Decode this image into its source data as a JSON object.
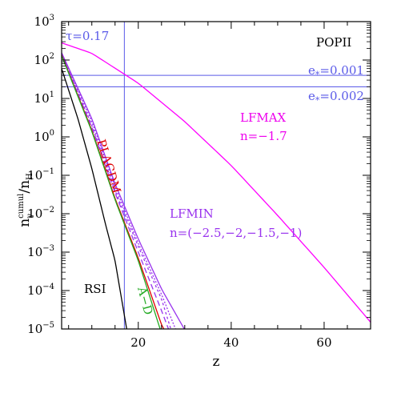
{
  "chart_data": {
    "type": "line",
    "xlabel": "z",
    "ylabel_main": "n",
    "ylabel_sub": "γ",
    "ylabel_sup": "cumul",
    "ylabel_tail": "/n",
    "ylabel_tail_sub": "H",
    "xlim": [
      3.5,
      70
    ],
    "ylim_log10": [
      -5,
      3
    ],
    "x_ticks": [
      {
        "value": 20,
        "label": "20"
      },
      {
        "value": 40,
        "label": "40"
      },
      {
        "value": 60,
        "label": "60"
      }
    ],
    "y_ticks": [
      {
        "exp": 3,
        "base": "10",
        "sup": "3"
      },
      {
        "exp": 2,
        "base": "10",
        "sup": "2"
      },
      {
        "exp": 1,
        "base": "10",
        "sup": "1"
      },
      {
        "exp": 0,
        "base": "10",
        "sup": "0"
      },
      {
        "exp": -1,
        "base": "10",
        "sup": "−1"
      },
      {
        "exp": -2,
        "base": "10",
        "sup": "−2"
      },
      {
        "exp": -3,
        "base": "10",
        "sup": "−3"
      },
      {
        "exp": -4,
        "base": "10",
        "sup": "−4"
      },
      {
        "exp": -5,
        "base": "10",
        "sup": "−5"
      }
    ],
    "reference_lines": {
      "vertical": {
        "x": 17,
        "color": "#5a5ae8",
        "label": "τ=0.17"
      },
      "horizontal": [
        {
          "y": 40,
          "color": "#5a5ae8",
          "label": "e",
          "sub": "*",
          "value": "=0.001"
        },
        {
          "y": 20,
          "color": "#5a5ae8",
          "label": "e",
          "sub": "*",
          "value": "=0.002"
        }
      ]
    },
    "series": [
      {
        "key": "lfmax",
        "color": "#ff00ff",
        "dash": "",
        "points": [
          [
            3.5,
            280
          ],
          [
            10,
            150
          ],
          [
            20,
            25
          ],
          [
            30,
            2.5
          ],
          [
            40,
            0.18
          ],
          [
            50,
            0.009
          ],
          [
            60,
            0.0004
          ],
          [
            70,
            1.5e-05
          ]
        ]
      },
      {
        "key": "lfmin_a",
        "color": "#9933ee",
        "dash": "",
        "points": [
          [
            3.5,
            155
          ],
          [
            10,
            3
          ],
          [
            15,
            0.06
          ],
          [
            20,
            0.0022
          ],
          [
            25,
            0.00011
          ],
          [
            30,
            9.5e-06
          ]
        ]
      },
      {
        "key": "lfmin_b",
        "color": "#9933ee",
        "dash": "2,2",
        "points": [
          [
            3.5,
            150
          ],
          [
            10,
            2.5
          ],
          [
            15,
            0.05
          ],
          [
            20,
            0.0017
          ],
          [
            25,
            8e-05
          ],
          [
            28,
            1e-05
          ]
        ]
      },
      {
        "key": "lfmin_c",
        "color": "#9933ee",
        "dash": "3,3",
        "points": [
          [
            3.5,
            145
          ],
          [
            10,
            2
          ],
          [
            15,
            0.04
          ],
          [
            20,
            0.0014
          ],
          [
            25,
            6e-05
          ],
          [
            27,
            1e-05
          ]
        ]
      },
      {
        "key": "lfmin_d",
        "color": "#9933ee",
        "dash": "7,4",
        "points": [
          [
            3.5,
            140
          ],
          [
            10,
            1.8
          ],
          [
            15,
            0.035
          ],
          [
            20,
            0.001
          ],
          [
            25,
            3e-05
          ],
          [
            26.5,
            1e-05
          ]
        ]
      },
      {
        "key": "placdm",
        "color": "#e00000",
        "dash": "",
        "points": [
          [
            3.5,
            135
          ],
          [
            10,
            1.5
          ],
          [
            15,
            0.025
          ],
          [
            20,
            0.0007
          ],
          [
            25,
            1.3e-05
          ],
          [
            25.5,
            1e-05
          ]
        ]
      },
      {
        "key": "ad",
        "color": "#22aa22",
        "dash": "",
        "points": [
          [
            3.5,
            130
          ],
          [
            10,
            1.4
          ],
          [
            15,
            0.023
          ],
          [
            20,
            0.0006
          ],
          [
            24.7,
            1e-05
          ]
        ]
      },
      {
        "key": "rsi",
        "color": "#000000",
        "dash": "",
        "points": [
          [
            3.5,
            60
          ],
          [
            7,
            3
          ],
          [
            10,
            0.15
          ],
          [
            13,
            0.005
          ],
          [
            15,
            0.0006
          ],
          [
            17.5,
            1e-05
          ]
        ]
      }
    ],
    "annotations": [
      {
        "key": "popii",
        "text": "POPII",
        "color": "#000000"
      },
      {
        "key": "lfmax",
        "text": "LFMAX",
        "color": "#ee00ee"
      },
      {
        "key": "lfmax_n",
        "text": "n=−1.7",
        "color": "#ee00ee"
      },
      {
        "key": "lfmin",
        "text": "LFMIN",
        "color": "#9933ee"
      },
      {
        "key": "lfmin_n",
        "text": "n=(−2.5,−2,−1.5,−1)",
        "color": "#9933ee"
      },
      {
        "key": "placdm",
        "text": "PLΛCDM",
        "color": "#dd0000"
      },
      {
        "key": "ad",
        "text": "A−D",
        "color": "#22aa22"
      },
      {
        "key": "rsi",
        "text": "RSI",
        "color": "#000000"
      }
    ]
  }
}
